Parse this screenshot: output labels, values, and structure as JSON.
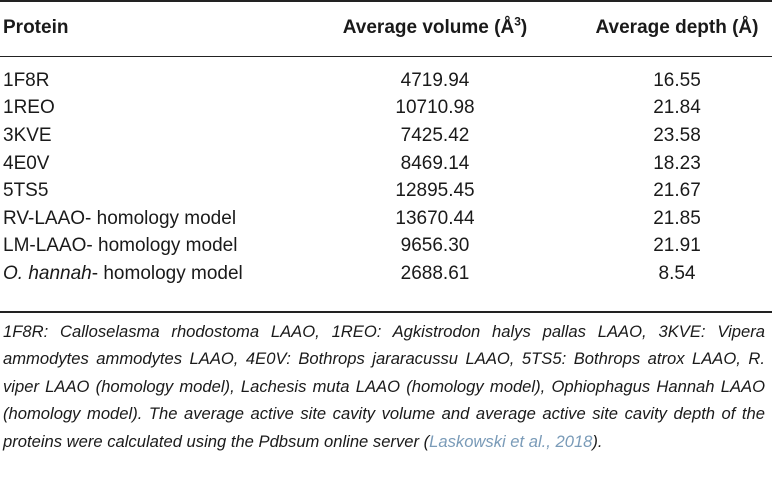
{
  "table": {
    "headers": {
      "protein": "Protein",
      "volume_prefix": "Average volume (Å",
      "volume_sup": "3",
      "volume_suffix": ")",
      "depth": "Average depth (Å)"
    },
    "rows": [
      {
        "protein": "1F8R",
        "volume": "4719.94",
        "depth": "16.55",
        "italic_prefix": ""
      },
      {
        "protein": "1REO",
        "volume": "10710.98",
        "depth": "21.84",
        "italic_prefix": ""
      },
      {
        "protein": "3KVE",
        "volume": "7425.42",
        "depth": "23.58",
        "italic_prefix": ""
      },
      {
        "protein": "4E0V",
        "volume": "8469.14",
        "depth": "18.23",
        "italic_prefix": ""
      },
      {
        "protein": "5TS5",
        "volume": "12895.45",
        "depth": "21.67",
        "italic_prefix": ""
      },
      {
        "protein": "RV-LAAO- homology model",
        "volume": "13670.44",
        "depth": "21.85",
        "italic_prefix": ""
      },
      {
        "protein": "LM-LAAO- homology model",
        "volume": "9656.30",
        "depth": "21.91",
        "italic_prefix": ""
      },
      {
        "protein": "- homology model",
        "volume": "2688.61",
        "depth": "8.54",
        "italic_prefix": "O. hannah"
      }
    ]
  },
  "footnote": {
    "text": "1F8R: Calloselasma rhodostoma LAAO, 1REO: Agkistrodon halys pallas LAAO, 3KVE: Vipera ammodytes ammodytes LAAO, 4E0V: Bothrops jararacussu LAAO, 5TS5: Bothrops atrox LAAO, R. viper LAAO (homology model), Lachesis muta LAAO (homology model), Ophiophagus Hannah LAAO (homology model). The average active site cavity volume and average active site cavity depth of the proteins were calculated using the Pdbsum online server (",
    "citation": "Laskowski et al., 2018",
    "end": ")."
  }
}
